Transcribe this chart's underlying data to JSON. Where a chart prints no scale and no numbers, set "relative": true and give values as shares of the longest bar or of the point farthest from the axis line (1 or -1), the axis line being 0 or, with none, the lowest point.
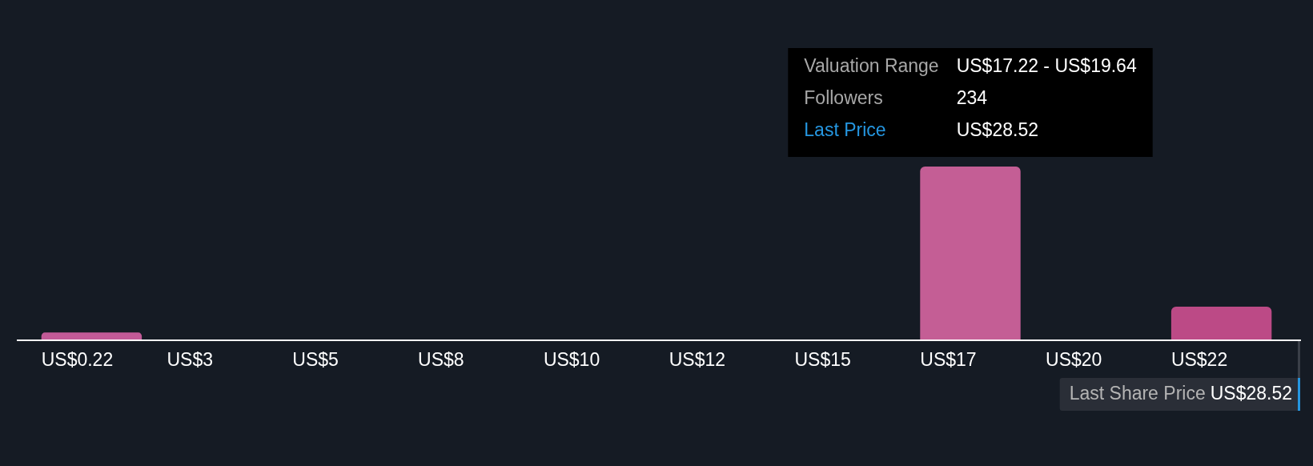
{
  "chart_data": {
    "type": "bar",
    "relative": true,
    "categories": [
      "US$0.22",
      "US$3",
      "US$5",
      "US$8",
      "US$10",
      "US$12",
      "US$15",
      "US$17",
      "US$20",
      "US$22"
    ],
    "values": [
      0.04,
      0,
      0,
      0,
      0,
      0,
      0,
      1,
      0,
      0.19
    ],
    "colors": [
      "#c25a97",
      "#c45e95",
      "#c45e95",
      "#c45e95",
      "#c45e95",
      "#c45e95",
      "#c45e95",
      "#c45e95",
      "#c45e95",
      "#bc4a86"
    ],
    "annotations": [
      "Valuation Range",
      "US$17.22 - US$19.64",
      "Followers",
      "234",
      "Last Price",
      "US$28.52",
      "Last Share Price",
      "US$28.52"
    ]
  }
}
